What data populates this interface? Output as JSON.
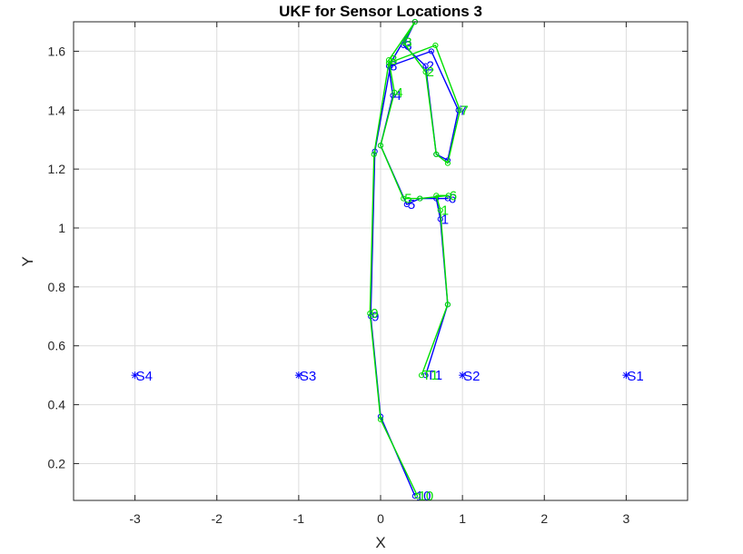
{
  "chart_data": {
    "type": "line",
    "title": "UKF for Sensor Locations 3",
    "xlabel": "X",
    "ylabel": "Y",
    "xlim": [
      -3.75,
      3.75
    ],
    "ylim": [
      0.075,
      1.7
    ],
    "xticks": [
      -3,
      -2,
      -1,
      0,
      1,
      2,
      3
    ],
    "yticks": [
      0.2,
      0.4,
      0.6,
      0.8,
      1,
      1.2,
      1.4,
      1.6
    ],
    "xtick_labels": [
      "-3",
      "-2",
      "-1",
      "0",
      "1",
      "2",
      "3"
    ],
    "ytick_labels": [
      "0.2",
      "0.4",
      "0.6",
      "0.8",
      "1",
      "1.2",
      "1.4",
      "1.6"
    ],
    "grid": true,
    "colors": {
      "estimate": "#0000ff",
      "truth": "#00e000",
      "sensor": "#0000ff"
    },
    "sensors": [
      {
        "label": "S4",
        "x": -3.0,
        "y": 0.5
      },
      {
        "label": "S3",
        "x": -1.0,
        "y": 0.5
      },
      {
        "label": "S2",
        "x": 1.0,
        "y": 0.5
      },
      {
        "label": "S1",
        "x": 3.0,
        "y": 0.5
      }
    ],
    "series": [
      {
        "color": "#0000ff",
        "points": [
          {
            "x": 0.55,
            "y": 0.5,
            "label": "T1"
          },
          {
            "x": 0.82,
            "y": 0.74
          },
          {
            "x": 0.73,
            "y": 1.03,
            "label": "1"
          },
          {
            "x": 0.68,
            "y": 1.1
          },
          {
            "x": 0.82,
            "y": 1.1,
            "label": "6"
          },
          {
            "x": 0.48,
            "y": 1.1
          },
          {
            "x": 0.32,
            "y": 1.08,
            "label": "5"
          },
          {
            "x": 0.0,
            "y": 1.28
          },
          {
            "x": 0.15,
            "y": 1.45,
            "label": "4"
          },
          {
            "x": 0.1,
            "y": 1.55,
            "label": "8"
          },
          {
            "x": 0.42,
            "y": 1.7
          },
          {
            "x": 0.28,
            "y": 1.62,
            "label": "3"
          },
          {
            "x": 0.55,
            "y": 1.55,
            "label": "2"
          },
          {
            "x": 0.68,
            "y": 1.25
          },
          {
            "x": 0.82,
            "y": 1.23
          },
          {
            "x": 0.95,
            "y": 1.4,
            "label": "7"
          },
          {
            "x": 0.62,
            "y": 1.6
          },
          {
            "x": 0.12,
            "y": 1.55
          },
          {
            "x": -0.07,
            "y": 1.26
          },
          {
            "x": -0.12,
            "y": 0.7,
            "label": "9"
          },
          {
            "x": 0.0,
            "y": 0.36
          },
          {
            "x": 0.42,
            "y": 0.09,
            "label": "10"
          }
        ]
      },
      {
        "color": "#00e000",
        "points": [
          {
            "x": 0.5,
            "y": 0.5,
            "label": "T1"
          },
          {
            "x": 0.82,
            "y": 0.74
          },
          {
            "x": 0.73,
            "y": 1.06,
            "label": "1"
          },
          {
            "x": 0.68,
            "y": 1.11
          },
          {
            "x": 0.83,
            "y": 1.11,
            "label": "6"
          },
          {
            "x": 0.48,
            "y": 1.1
          },
          {
            "x": 0.28,
            "y": 1.1,
            "label": "5"
          },
          {
            "x": 0.0,
            "y": 1.28
          },
          {
            "x": 0.17,
            "y": 1.46,
            "label": "4"
          },
          {
            "x": 0.1,
            "y": 1.57,
            "label": "8"
          },
          {
            "x": 0.42,
            "y": 1.7
          },
          {
            "x": 0.28,
            "y": 1.63,
            "label": "3"
          },
          {
            "x": 0.55,
            "y": 1.53,
            "label": "2"
          },
          {
            "x": 0.68,
            "y": 1.25
          },
          {
            "x": 0.82,
            "y": 1.22
          },
          {
            "x": 0.97,
            "y": 1.4,
            "label": "7"
          },
          {
            "x": 0.67,
            "y": 1.62
          },
          {
            "x": 0.1,
            "y": 1.56
          },
          {
            "x": -0.08,
            "y": 1.25
          },
          {
            "x": -0.13,
            "y": 0.71,
            "label": "9"
          },
          {
            "x": 0.0,
            "y": 0.35
          },
          {
            "x": 0.45,
            "y": 0.09,
            "label": "10"
          }
        ]
      }
    ]
  }
}
